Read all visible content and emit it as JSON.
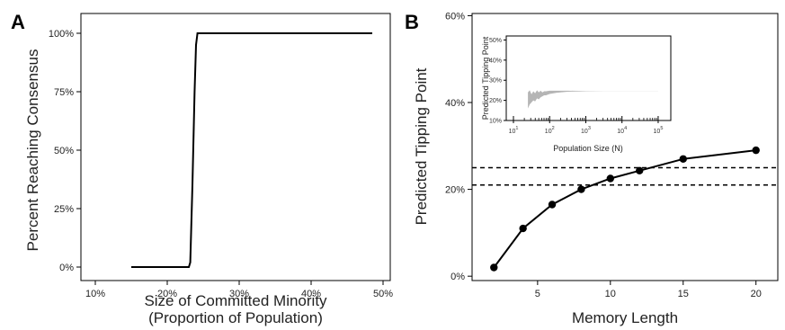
{
  "chart_data": [
    {
      "panel": "A",
      "type": "line",
      "xlabel_line1": "Size of Committed Minority",
      "xlabel_line2": "(Proportion of Population)",
      "ylabel": "Percent Reaching Consensus",
      "xlim": [
        0.08,
        0.51
      ],
      "ylim": [
        0,
        1
      ],
      "x_ticks": [
        0.1,
        0.2,
        0.3,
        0.4,
        0.5
      ],
      "x_tick_labels": [
        "10%",
        "20%",
        "30%",
        "40%",
        "50%"
      ],
      "y_ticks": [
        0,
        0.25,
        0.5,
        0.75,
        1.0
      ],
      "y_tick_labels": [
        "0%",
        "25%",
        "50%",
        "75%",
        "100%"
      ],
      "grid": false,
      "series": [
        {
          "x": [
            0.15,
            0.23,
            0.232,
            0.235,
            0.238,
            0.24,
            0.242,
            0.245,
            0.485
          ],
          "y": [
            0,
            0,
            0.02,
            0.35,
            0.75,
            0.95,
            1.0,
            1.0,
            1.0
          ]
        }
      ]
    },
    {
      "panel": "B",
      "type": "line",
      "xlabel": "Memory Length",
      "ylabel": "Predicted Tipping Point",
      "xlim": [
        0.5,
        21.5
      ],
      "ylim": [
        -0.01,
        0.605
      ],
      "x_ticks": [
        5,
        10,
        15,
        20
      ],
      "x_tick_labels": [
        "5",
        "10",
        "15",
        "20"
      ],
      "y_ticks": [
        0,
        0.2,
        0.4,
        0.6
      ],
      "y_tick_labels": [
        "0%",
        "20%",
        "40%",
        "60%"
      ],
      "grid": false,
      "series": [
        {
          "x": [
            2,
            4,
            6,
            8,
            10,
            12,
            15,
            20
          ],
          "y": [
            0.02,
            0.11,
            0.165,
            0.2,
            0.225,
            0.243,
            0.27,
            0.29
          ]
        }
      ],
      "reference_lines": [
        0.21,
        0.25
      ],
      "inset": {
        "type": "area",
        "xlabel": "Population Size (N)",
        "ylabel": "Predicted Tipping Point",
        "x_scale": "log",
        "xlim": [
          1,
          5.2
        ],
        "ylim": [
          0.1,
          0.52
        ],
        "x_ticks_exp": [
          1,
          2,
          3,
          4,
          5
        ],
        "x_tick_label_base": "10",
        "y_ticks": [
          0.1,
          0.2,
          0.3,
          0.4,
          0.5
        ],
        "y_tick_labels": [
          "10%",
          "20%",
          "30%",
          "40%",
          "50%"
        ],
        "band": {
          "x_log": [
            1.4,
            1.45,
            1.5,
            1.55,
            1.6,
            1.65,
            1.7,
            1.75,
            1.8,
            1.85,
            1.9,
            2.0,
            2.2,
            2.5,
            3.0,
            3.5,
            4.0,
            5.0
          ],
          "upper": [
            0.24,
            0.25,
            0.23,
            0.245,
            0.235,
            0.25,
            0.24,
            0.248,
            0.24,
            0.245,
            0.245,
            0.248,
            0.248,
            0.248,
            0.247,
            0.247,
            0.247,
            0.247
          ],
          "lower": [
            0.16,
            0.18,
            0.19,
            0.2,
            0.195,
            0.21,
            0.205,
            0.215,
            0.22,
            0.225,
            0.225,
            0.232,
            0.238,
            0.243,
            0.245,
            0.246,
            0.246,
            0.246
          ]
        }
      }
    }
  ]
}
